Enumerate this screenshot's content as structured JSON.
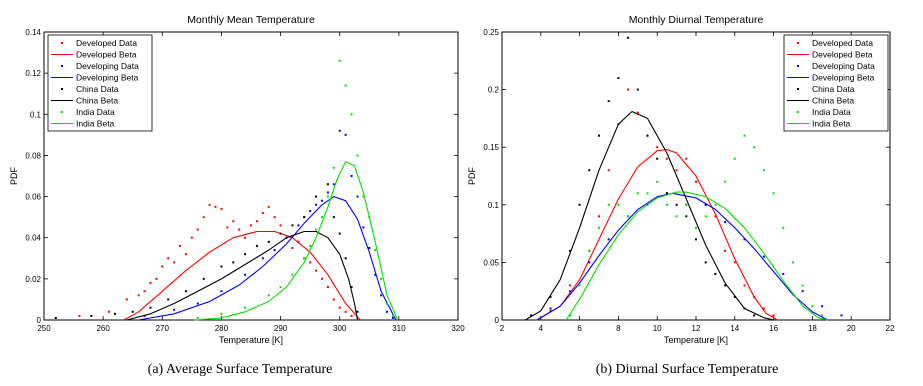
{
  "captions": [
    "(a) Average Surface Temperature",
    "(b) Diurnal Surface Temperature"
  ],
  "colors": {
    "Developed": "#ff0000",
    "Developing": "#0000ff",
    "China": "#000000",
    "India": "#00e000"
  },
  "chart_data": [
    {
      "type": "line",
      "title": "Monthly Mean Temperature",
      "xlabel": "Temperature [K]",
      "ylabel": "PDF",
      "xlim": [
        250,
        320
      ],
      "ylim": [
        0,
        0.14
      ],
      "xticks": [
        250,
        260,
        270,
        280,
        290,
        300,
        310,
        320
      ],
      "yticks": [
        0,
        0.02,
        0.04,
        0.06,
        0.08,
        0.1,
        0.12,
        0.14
      ],
      "grid": false,
      "legend_position": "top-left",
      "legend": [
        "Developed Data",
        "Developed Beta",
        "Developing Data",
        "Developing Beta",
        "China Data",
        "China Beta",
        "India Data",
        "India Beta"
      ],
      "series": [
        {
          "name": "Developed",
          "data_label": "Developed Data",
          "beta_label": "Developed Beta",
          "color": "#ff0000",
          "beta": {
            "x": [
              263.5,
              266,
              270,
              274,
              278,
              282,
              286,
              289,
              292,
              295,
              298,
              301,
              303.5
            ],
            "y": [
              0,
              0.004,
              0.014,
              0.024,
              0.033,
              0.04,
              0.043,
              0.043,
              0.04,
              0.033,
              0.022,
              0.008,
              0
            ]
          },
          "data": {
            "x": [
              256,
              261,
              264,
              266,
              267,
              268,
              269,
              270,
              271,
              272,
              273,
              274,
              275,
              276,
              277,
              278,
              279,
              280,
              281,
              282,
              283,
              284,
              285,
              286,
              287,
              288,
              289,
              290,
              291,
              292,
              293,
              294,
              295,
              296,
              297,
              298,
              299,
              300,
              301,
              302
            ],
            "y": [
              0.002,
              0.004,
              0.01,
              0.012,
              0.014,
              0.018,
              0.02,
              0.026,
              0.03,
              0.028,
              0.036,
              0.032,
              0.04,
              0.044,
              0.05,
              0.056,
              0.055,
              0.054,
              0.045,
              0.048,
              0.044,
              0.04,
              0.046,
              0.048,
              0.052,
              0.055,
              0.05,
              0.046,
              0.04,
              0.035,
              0.038,
              0.03,
              0.028,
              0.024,
              0.02,
              0.016,
              0.01,
              0.006,
              0.004,
              0.002
            ]
          }
        },
        {
          "name": "Developing",
          "data_label": "Developing Data",
          "beta_label": "Developing Beta",
          "color": "#0000ff",
          "beta": {
            "x": [
              266,
              272,
              278,
              283,
              287,
              291,
              294,
              297,
              299,
              301,
              303,
              305,
              307,
              309.5
            ],
            "y": [
              0,
              0.003,
              0.009,
              0.017,
              0.026,
              0.037,
              0.047,
              0.056,
              0.06,
              0.058,
              0.049,
              0.033,
              0.014,
              0
            ]
          },
          "data": {
            "x": [
              267,
              272,
              276,
              280,
              284,
              287,
              289,
              291,
              293,
              294,
              295,
              296,
              297,
              298,
              299,
              300,
              301,
              302,
              303,
              304,
              305,
              306,
              307,
              308,
              309
            ],
            "y": [
              0.002,
              0.005,
              0.008,
              0.014,
              0.022,
              0.03,
              0.034,
              0.04,
              0.046,
              0.05,
              0.053,
              0.056,
              0.058,
              0.062,
              0.066,
              0.092,
              0.09,
              0.07,
              0.06,
              0.045,
              0.035,
              0.022,
              0.012,
              0.004,
              0.001
            ]
          }
        },
        {
          "name": "China",
          "data_label": "China Data",
          "beta_label": "China Beta",
          "color": "#000000",
          "beta": {
            "x": [
              264,
              268,
              272,
              276,
              280,
              284,
              288,
              291,
              294,
              296,
              298,
              300,
              301.5,
              302.5,
              303
            ],
            "y": [
              0,
              0.003,
              0.008,
              0.014,
              0.02,
              0.027,
              0.034,
              0.04,
              0.043,
              0.043,
              0.04,
              0.032,
              0.02,
              0.008,
              0
            ]
          },
          "data": {
            "x": [
              252,
              258,
              262,
              265,
              268,
              271,
              274,
              277,
              280,
              282,
              284,
              286,
              288,
              290,
              292,
              294,
              296,
              298,
              299,
              300,
              301,
              302,
              303
            ],
            "y": [
              0.001,
              0.002,
              0.003,
              0.004,
              0.006,
              0.01,
              0.014,
              0.02,
              0.026,
              0.028,
              0.032,
              0.036,
              0.038,
              0.042,
              0.046,
              0.05,
              0.06,
              0.066,
              0.05,
              0.042,
              0.03,
              0.016,
              0.004
            ]
          }
        },
        {
          "name": "India",
          "data_label": "India Data",
          "beta_label": "India Beta",
          "color": "#00e000",
          "beta": {
            "x": [
              275.5,
              280,
              284,
              288,
              291,
              294,
              296,
              298,
              299.5,
              301,
              302.5,
              304,
              306,
              308,
              309.8
            ],
            "y": [
              0,
              0.001,
              0.004,
              0.009,
              0.016,
              0.028,
              0.04,
              0.055,
              0.068,
              0.077,
              0.075,
              0.062,
              0.038,
              0.012,
              0
            ]
          },
          "data": {
            "x": [
              276,
              280,
              284,
              288,
              290,
              292,
              294,
              295,
              296,
              297,
              298,
              299,
              300,
              301,
              302,
              303,
              304,
              305,
              306,
              307,
              308,
              309
            ],
            "y": [
              0.001,
              0.003,
              0.006,
              0.012,
              0.016,
              0.022,
              0.03,
              0.036,
              0.044,
              0.05,
              0.06,
              0.074,
              0.126,
              0.114,
              0.1,
              0.08,
              0.06,
              0.05,
              0.034,
              0.02,
              0.008,
              0.002
            ]
          }
        }
      ]
    },
    {
      "type": "line",
      "title": "Monthly Diurnal Temperature",
      "xlabel": "Temperature [K]",
      "ylabel": "PDF",
      "xlim": [
        2,
        22
      ],
      "ylim": [
        0,
        0.25
      ],
      "xticks": [
        2,
        4,
        6,
        8,
        10,
        12,
        14,
        16,
        18,
        20,
        22
      ],
      "yticks": [
        0,
        0.05,
        0.1,
        0.15,
        0.2,
        0.25
      ],
      "grid": false,
      "legend_position": "top-right",
      "legend": [
        "Developed Data",
        "Developed Beta",
        "Developing Data",
        "Developing Beta",
        "China Data",
        "China Beta",
        "India Data",
        "India Beta"
      ],
      "series": [
        {
          "name": "Developed",
          "data_label": "Developed Data",
          "beta_label": "Developed Beta",
          "color": "#ff0000",
          "beta": {
            "x": [
              3.8,
              5,
              6,
              7,
              8,
              9,
              10,
              10.5,
              11,
              12,
              13,
              14,
              15,
              15.6,
              16.2
            ],
            "y": [
              0,
              0.012,
              0.035,
              0.07,
              0.105,
              0.133,
              0.147,
              0.148,
              0.145,
              0.125,
              0.092,
              0.053,
              0.02,
              0.006,
              0
            ]
          },
          "data": {
            "x": [
              4.5,
              5.5,
              6.5,
              7,
              7.5,
              8,
              8.5,
              9,
              9.5,
              10,
              10.5,
              11,
              11.5,
              12,
              12.5,
              13,
              13.5,
              14,
              14.5,
              15,
              15.5,
              16
            ],
            "y": [
              0.008,
              0.03,
              0.06,
              0.09,
              0.13,
              0.17,
              0.2,
              0.18,
              0.16,
              0.15,
              0.14,
              0.13,
              0.14,
              0.12,
              0.1,
              0.09,
              0.06,
              0.05,
              0.03,
              0.02,
              0.01,
              0.004
            ]
          }
        },
        {
          "name": "Developing",
          "data_label": "Developing Data",
          "beta_label": "Developing Beta",
          "color": "#0000ff",
          "beta": {
            "x": [
              3.8,
              5,
              6,
              7,
              8,
              9,
              10,
              10.8,
              12,
              13,
              14,
              15,
              16,
              17,
              18,
              18.8
            ],
            "y": [
              0,
              0.012,
              0.032,
              0.056,
              0.078,
              0.096,
              0.107,
              0.11,
              0.106,
              0.096,
              0.08,
              0.062,
              0.042,
              0.022,
              0.007,
              0
            ]
          },
          "data": {
            "x": [
              4.5,
              5.5,
              6.5,
              7.5,
              8.5,
              9.5,
              10.5,
              11.5,
              12.5,
              13.5,
              14.5,
              15.5,
              16.5,
              17.5,
              18.5,
              19.5
            ],
            "y": [
              0.01,
              0.025,
              0.05,
              0.07,
              0.09,
              0.1,
              0.11,
              0.1,
              0.1,
              0.085,
              0.07,
              0.055,
              0.04,
              0.025,
              0.012,
              0.004
            ]
          }
        },
        {
          "name": "China",
          "data_label": "China Data",
          "beta_label": "China Beta",
          "color": "#000000",
          "beta": {
            "x": [
              3.2,
              4,
              5,
              6,
              7,
              8,
              8.7,
              9.5,
              10.5,
              11.5,
              12.5,
              13.5,
              14.5,
              15.5,
              16
            ],
            "y": [
              0,
              0.008,
              0.035,
              0.08,
              0.13,
              0.17,
              0.181,
              0.175,
              0.145,
              0.105,
              0.065,
              0.032,
              0.01,
              0.002,
              0
            ]
          },
          "data": {
            "x": [
              3.5,
              4.5,
              5.5,
              6,
              6.5,
              7,
              7.5,
              8,
              8.5,
              9,
              9.5,
              10,
              10.5,
              11,
              11.5,
              12,
              12.5,
              13,
              13.5,
              14,
              14.5,
              15
            ],
            "y": [
              0.004,
              0.02,
              0.06,
              0.1,
              0.13,
              0.16,
              0.19,
              0.21,
              0.245,
              0.2,
              0.16,
              0.14,
              0.11,
              0.1,
              0.09,
              0.07,
              0.05,
              0.04,
              0.03,
              0.02,
              0.01,
              0.004
            ]
          }
        },
        {
          "name": "India",
          "data_label": "India Data",
          "beta_label": "India Beta",
          "color": "#00e000",
          "beta": {
            "x": [
              5.3,
              6,
              7,
              8,
              9,
              10,
              11,
              11.5,
              12.5,
              13.5,
              14.5,
              15.5,
              16.5,
              17.5,
              18.3,
              18.8
            ],
            "y": [
              0,
              0.018,
              0.048,
              0.074,
              0.094,
              0.106,
              0.111,
              0.111,
              0.107,
              0.097,
              0.08,
              0.058,
              0.034,
              0.012,
              0.002,
              0
            ]
          },
          "data": {
            "x": [
              5.5,
              6,
              6.5,
              7,
              7.5,
              8,
              8.5,
              9,
              9.5,
              10,
              10.5,
              11,
              11.5,
              12,
              12.5,
              13,
              13.5,
              14,
              14.5,
              15,
              15.5,
              16,
              16.5,
              17,
              17.5,
              18,
              18.5
            ],
            "y": [
              0.004,
              0.03,
              0.06,
              0.08,
              0.1,
              0.1,
              0.09,
              0.11,
              0.11,
              0.12,
              0.1,
              0.09,
              0.1,
              0.08,
              0.09,
              0.1,
              0.12,
              0.14,
              0.16,
              0.15,
              0.13,
              0.11,
              0.08,
              0.05,
              0.03,
              0.012,
              0.004
            ]
          }
        }
      ]
    }
  ]
}
